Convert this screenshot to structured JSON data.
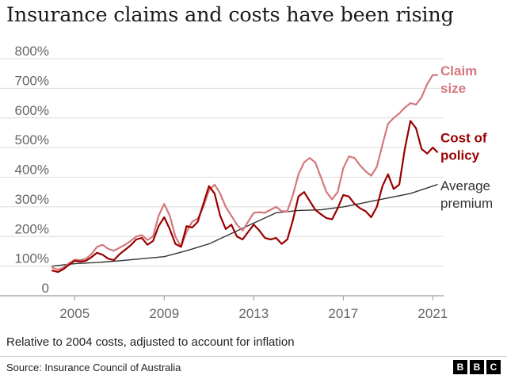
{
  "chart_data": {
    "type": "line",
    "title": "Insurance claims and costs have been rising",
    "subtitle": "Relative to 2004 costs, adjusted to account for inflation",
    "source": "Source: Insurance Council of Australia",
    "brand": [
      "B",
      "B",
      "C"
    ],
    "xlabel": "",
    "ylabel": "",
    "xlim": [
      2004.0,
      2021.2
    ],
    "ylim": [
      0,
      800
    ],
    "y_ticks": [
      {
        "value": 0,
        "label": "0"
      },
      {
        "value": 100,
        "label": "100%"
      },
      {
        "value": 200,
        "label": "200%"
      },
      {
        "value": 300,
        "label": "300%"
      },
      {
        "value": 400,
        "label": "400%"
      },
      {
        "value": 500,
        "label": "500%"
      },
      {
        "value": 600,
        "label": "600%"
      },
      {
        "value": 700,
        "label": "700%"
      },
      {
        "value": 800,
        "label": "800%"
      }
    ],
    "x_ticks": [
      {
        "value": 2005,
        "label": "2005"
      },
      {
        "value": 2009,
        "label": "2009"
      },
      {
        "value": 2013,
        "label": "2013"
      },
      {
        "value": 2017,
        "label": "2017"
      },
      {
        "value": 2021,
        "label": "2021"
      }
    ],
    "grid": true,
    "series": [
      {
        "name": "Claim size",
        "label_lines": [
          "Claim",
          "size"
        ],
        "color": "#d4787c",
        "label_bold": true,
        "label_value": 730,
        "x": [
          2004.0,
          2004.25,
          2004.5,
          2004.75,
          2005.0,
          2005.25,
          2005.5,
          2005.75,
          2006.0,
          2006.25,
          2006.5,
          2006.75,
          2007.0,
          2007.25,
          2007.5,
          2007.75,
          2008.0,
          2008.25,
          2008.5,
          2008.75,
          2009.0,
          2009.25,
          2009.5,
          2009.75,
          2010.0,
          2010.25,
          2010.5,
          2010.75,
          2011.0,
          2011.25,
          2011.5,
          2011.75,
          2012.0,
          2012.25,
          2012.5,
          2012.75,
          2013.0,
          2013.25,
          2013.5,
          2013.75,
          2014.0,
          2014.25,
          2014.5,
          2014.75,
          2015.0,
          2015.25,
          2015.5,
          2015.75,
          2016.0,
          2016.25,
          2016.5,
          2016.75,
          2017.0,
          2017.25,
          2017.5,
          2017.75,
          2018.0,
          2018.25,
          2018.5,
          2018.75,
          2019.0,
          2019.25,
          2019.5,
          2019.75,
          2020.0,
          2020.25,
          2020.5,
          2020.75,
          2021.0,
          2021.2
        ],
        "values": [
          95,
          88,
          95,
          110,
          122,
          120,
          125,
          140,
          165,
          172,
          158,
          152,
          162,
          172,
          185,
          200,
          205,
          188,
          200,
          270,
          310,
          270,
          200,
          165,
          215,
          250,
          260,
          300,
          355,
          375,
          345,
          300,
          270,
          240,
          220,
          250,
          280,
          282,
          280,
          290,
          300,
          285,
          285,
          340,
          410,
          450,
          465,
          450,
          400,
          350,
          325,
          350,
          430,
          470,
          465,
          440,
          420,
          405,
          435,
          510,
          580,
          600,
          615,
          635,
          650,
          645,
          670,
          715,
          745,
          745
        ]
      },
      {
        "name": "Cost of policy",
        "label_lines": [
          "Cost of",
          "policy"
        ],
        "color": "#990000",
        "label_bold": true,
        "label_value": 505,
        "x": [
          2004.0,
          2004.25,
          2004.5,
          2004.75,
          2005.0,
          2005.25,
          2005.5,
          2005.75,
          2006.0,
          2006.25,
          2006.5,
          2006.75,
          2007.0,
          2007.25,
          2007.5,
          2007.75,
          2008.0,
          2008.25,
          2008.5,
          2008.75,
          2009.0,
          2009.25,
          2009.5,
          2009.75,
          2010.0,
          2010.25,
          2010.5,
          2010.75,
          2011.0,
          2011.25,
          2011.5,
          2011.75,
          2012.0,
          2012.25,
          2012.5,
          2012.75,
          2013.0,
          2013.25,
          2013.5,
          2013.75,
          2014.0,
          2014.25,
          2014.5,
          2014.75,
          2015.0,
          2015.25,
          2015.5,
          2015.75,
          2016.0,
          2016.25,
          2016.5,
          2016.75,
          2017.0,
          2017.25,
          2017.5,
          2017.75,
          2018.0,
          2018.25,
          2018.5,
          2018.75,
          2019.0,
          2019.25,
          2019.5,
          2019.75,
          2020.0,
          2020.25,
          2020.5,
          2020.75,
          2021.0,
          2021.2
        ],
        "values": [
          85,
          80,
          90,
          105,
          118,
          115,
          118,
          130,
          145,
          138,
          125,
          120,
          140,
          155,
          170,
          190,
          195,
          172,
          185,
          235,
          265,
          225,
          175,
          165,
          235,
          230,
          250,
          310,
          370,
          345,
          270,
          225,
          240,
          200,
          190,
          215,
          240,
          220,
          195,
          190,
          195,
          175,
          190,
          255,
          335,
          350,
          320,
          290,
          275,
          262,
          258,
          295,
          340,
          335,
          310,
          295,
          285,
          265,
          300,
          370,
          410,
          360,
          375,
          495,
          590,
          565,
          495,
          480,
          500,
          485
        ]
      },
      {
        "name": "Average premium",
        "label_lines": [
          "Average",
          "premium"
        ],
        "color": "#333333",
        "label_bold": false,
        "label_value": 342,
        "x": [
          2004.0,
          2005.0,
          2006.0,
          2007.0,
          2008.0,
          2009.0,
          2010.0,
          2011.0,
          2012.0,
          2013.0,
          2014.0,
          2015.0,
          2016.0,
          2017.0,
          2018.0,
          2019.0,
          2020.0,
          2021.0,
          2021.2
        ],
        "values": [
          100,
          108,
          112,
          118,
          125,
          132,
          152,
          175,
          210,
          245,
          280,
          288,
          290,
          300,
          315,
          330,
          345,
          370,
          375
        ]
      }
    ]
  }
}
